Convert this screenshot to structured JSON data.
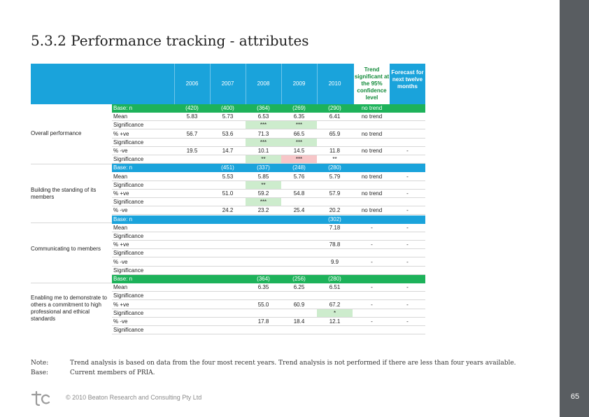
{
  "title": "5.3.2 Performance tracking - attributes",
  "header": {
    "years": [
      "2006",
      "2007",
      "2008",
      "2009",
      "2010"
    ],
    "trend": "Trend significant at the 95% confidence level",
    "forecast": "Forecast for next twelve months"
  },
  "groups": [
    {
      "label": "Overall performance"
    },
    {
      "label": "Building the standing of its members"
    },
    {
      "label": "Communicating to members"
    },
    {
      "label": "Enabling me to demonstrate to others a commitment to high professional and ethical standards"
    }
  ],
  "rows": [
    {
      "label": "Base: n",
      "cells": [
        "(420)",
        "(400)",
        "(364)",
        "(269)",
        "(290)",
        "no trend",
        ""
      ]
    },
    {
      "label": "Mean",
      "cells": [
        "5.83",
        "5.73",
        "6.53",
        "6.35",
        "6.41",
        "no trend",
        ""
      ]
    },
    {
      "label": "Significance",
      "cells": [
        "",
        "",
        "***",
        "***",
        "",
        "",
        ""
      ]
    },
    {
      "label": "% +ve",
      "cells": [
        "56.7",
        "53.6",
        "71.3",
        "66.5",
        "65.9",
        "no trend",
        ""
      ]
    },
    {
      "label": "Significance",
      "cells": [
        "",
        "",
        "***",
        "***",
        "",
        "",
        ""
      ]
    },
    {
      "label": "% -ve",
      "cells": [
        "19.5",
        "14.7",
        "10.1",
        "14.5",
        "11.8",
        "no trend",
        "-"
      ]
    },
    {
      "label": "Significance",
      "cells": [
        "",
        "",
        "**",
        "***",
        "**",
        "",
        ""
      ]
    },
    {
      "label": "Base: n",
      "cells": [
        "",
        "(451)",
        "(337)",
        "(248)",
        "(280)",
        "",
        ""
      ]
    },
    {
      "label": "Mean",
      "cells": [
        "",
        "5.53",
        "5.85",
        "5.76",
        "5.79",
        "no trend",
        "-"
      ]
    },
    {
      "label": "Significance",
      "cells": [
        "",
        "",
        "**",
        "",
        "",
        "",
        ""
      ]
    },
    {
      "label": "% +ve",
      "cells": [
        "",
        "51.0",
        "59.2",
        "54.8",
        "57.9",
        "no trend",
        "-"
      ]
    },
    {
      "label": "Significance",
      "cells": [
        "",
        "",
        "***",
        "",
        "",
        "",
        ""
      ]
    },
    {
      "label": "% -ve",
      "cells": [
        "",
        "24.2",
        "23.2",
        "25.4",
        "20.2",
        "no trend",
        "-"
      ]
    },
    {
      "label": "Base: n",
      "cells": [
        "",
        "",
        "",
        "",
        "(302)",
        "",
        ""
      ]
    },
    {
      "label": "Mean",
      "cells": [
        "",
        "",
        "",
        "",
        "7.18",
        "-",
        "-"
      ]
    },
    {
      "label": "Significance",
      "cells": [
        "",
        "",
        "",
        "",
        "",
        "",
        ""
      ]
    },
    {
      "label": "% +ve",
      "cells": [
        "",
        "",
        "",
        "",
        "78.8",
        "-",
        "-"
      ]
    },
    {
      "label": "Significance",
      "cells": [
        "",
        "",
        "",
        "",
        "",
        "",
        ""
      ]
    },
    {
      "label": "% -ve",
      "cells": [
        "",
        "",
        "",
        "",
        "9.9",
        "-",
        "-"
      ]
    },
    {
      "label": "Significance",
      "cells": [
        "",
        "",
        "",
        "",
        "",
        "",
        ""
      ]
    },
    {
      "label": "Base: n",
      "cells": [
        "",
        "",
        "(364)",
        "(256)",
        "(280)",
        "",
        ""
      ]
    },
    {
      "label": "Mean",
      "cells": [
        "",
        "",
        "6.35",
        "6.25",
        "6.51",
        "-",
        "-"
      ]
    },
    {
      "label": "Significance",
      "cells": [
        "",
        "",
        "",
        "",
        "",
        "",
        ""
      ]
    },
    {
      "label": "% +ve",
      "cells": [
        "",
        "",
        "55.0",
        "60.9",
        "67.2",
        "-",
        "-"
      ]
    },
    {
      "label": "Significance",
      "cells": [
        "",
        "",
        "",
        "",
        "*",
        "",
        ""
      ]
    },
    {
      "label": "% -ve",
      "cells": [
        "",
        "",
        "17.8",
        "18.4",
        "12.1",
        "-",
        "-"
      ]
    },
    {
      "label": "Significance",
      "cells": [
        "",
        "",
        "",
        "",
        "",
        "",
        ""
      ]
    }
  ],
  "note": {
    "label": "Note:",
    "text": "Trend analysis is based on data from the four most recent years. Trend analysis is not performed if there are less than four years available."
  },
  "base": {
    "label": "Base:",
    "text": "Current members of PRIA."
  },
  "footer": {
    "copyright": "© 2010 Beaton Research and Consulting Pty Ltd",
    "page": "65"
  },
  "colors": {
    "header_blue": "#1aa3db",
    "base_green": "#1db25a",
    "sig_green": "#cdeccd",
    "sig_pink": "#f7c6c8",
    "sidebar": "#595d61"
  }
}
